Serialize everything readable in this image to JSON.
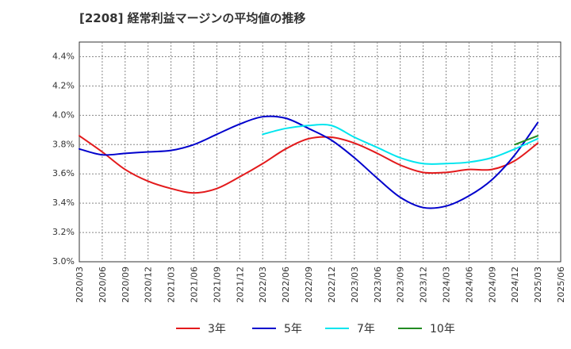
{
  "title": "[2208]  経常利益マージンの平均値の推移",
  "chart_data": {
    "type": "line",
    "title": "[2208]  経常利益マージンの平均値の推移",
    "xlabel": "",
    "ylabel": "",
    "x": [
      "2020/03",
      "2020/06",
      "2020/09",
      "2020/12",
      "2021/03",
      "2021/06",
      "2021/09",
      "2021/12",
      "2022/03",
      "2022/06",
      "2022/09",
      "2022/12",
      "2023/03",
      "2023/06",
      "2023/09",
      "2023/12",
      "2024/03",
      "2024/06",
      "2024/09",
      "2024/12",
      "2025/03",
      "2025/06"
    ],
    "yticks": [
      "3.0%",
      "3.2%",
      "3.4%",
      "3.6%",
      "3.8%",
      "4.0%",
      "4.2%",
      "4.4%"
    ],
    "ylim": [
      3.0,
      4.5
    ],
    "grid": true,
    "legend_position": "bottom",
    "series": [
      {
        "name": "3年",
        "color": "#e31a1c",
        "values": [
          3.86,
          3.75,
          3.63,
          3.55,
          3.5,
          3.47,
          3.5,
          3.58,
          3.67,
          3.77,
          3.84,
          3.85,
          3.81,
          3.74,
          3.66,
          3.61,
          3.61,
          3.63,
          3.63,
          3.69,
          3.81,
          null
        ]
      },
      {
        "name": "5年",
        "color": "#0000cc",
        "values": [
          3.77,
          3.73,
          3.74,
          3.75,
          3.76,
          3.8,
          3.87,
          3.94,
          3.99,
          3.98,
          3.91,
          3.83,
          3.71,
          3.57,
          3.44,
          3.37,
          3.38,
          3.45,
          3.56,
          3.73,
          3.95,
          null
        ]
      },
      {
        "name": "7年",
        "color": "#00e5ee",
        "values": [
          null,
          null,
          null,
          null,
          null,
          null,
          null,
          null,
          3.87,
          3.91,
          3.93,
          3.93,
          3.85,
          3.78,
          3.71,
          3.67,
          3.67,
          3.68,
          3.71,
          3.77,
          3.84,
          null
        ]
      },
      {
        "name": "10年",
        "color": "#228b22",
        "values": [
          null,
          null,
          null,
          null,
          null,
          null,
          null,
          null,
          null,
          null,
          null,
          null,
          null,
          null,
          null,
          null,
          null,
          null,
          null,
          3.8,
          3.86,
          null
        ]
      }
    ]
  }
}
